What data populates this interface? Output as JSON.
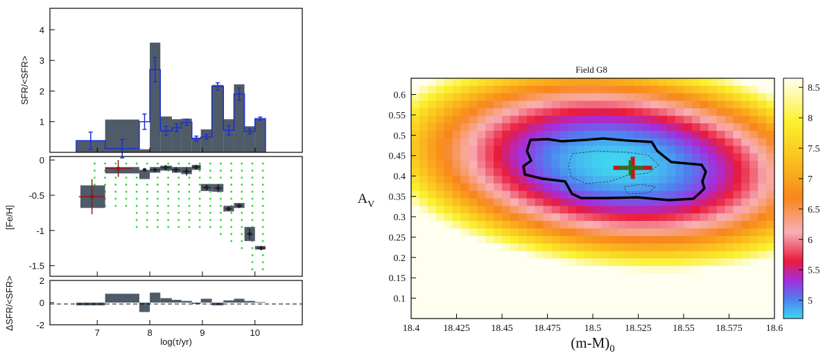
{
  "chart_data": [
    {
      "type": "bar",
      "panel": "SFR history",
      "ylabel": "SFR/<SFR>",
      "ylim": [
        0,
        4.7
      ],
      "yticks": [
        1,
        2,
        3,
        4
      ],
      "xlim": [
        6.1,
        10.9
      ],
      "bins": [
        {
          "x0": 6.6,
          "x1": 7.15,
          "sfr": 0.38,
          "best": 0.38,
          "err": 0.28
        },
        {
          "x0": 7.15,
          "x1": 7.8,
          "sfr": 1.07,
          "best": 0.12,
          "err": 0.3
        },
        {
          "x0": 7.8,
          "x1": 8.0,
          "sfr": 0.1,
          "best": 1.0,
          "err": 0.25
        },
        {
          "x0": 8.0,
          "x1": 8.2,
          "sfr": 3.58,
          "best": 2.7,
          "err": 0.4
        },
        {
          "x0": 8.2,
          "x1": 8.42,
          "sfr": 1.17,
          "best": 0.7,
          "err": 0.15
        },
        {
          "x0": 8.42,
          "x1": 8.6,
          "sfr": 1.08,
          "best": 0.8,
          "err": 0.12
        },
        {
          "x0": 8.6,
          "x1": 8.8,
          "sfr": 1.1,
          "best": 0.98,
          "err": 0.1
        },
        {
          "x0": 8.8,
          "x1": 8.97,
          "sfr": 0.48,
          "best": 0.45,
          "err": 0.08
        },
        {
          "x0": 8.97,
          "x1": 9.18,
          "sfr": 0.75,
          "best": 0.5,
          "err": 0.08
        },
        {
          "x0": 9.18,
          "x1": 9.4,
          "sfr": 2.2,
          "best": 2.15,
          "err": 0.12
        },
        {
          "x0": 9.4,
          "x1": 9.6,
          "sfr": 1.08,
          "best": 0.72,
          "err": 0.15
        },
        {
          "x0": 9.6,
          "x1": 9.8,
          "sfr": 2.22,
          "best": 1.9,
          "err": 0.2
        },
        {
          "x0": 9.8,
          "x1": 10.0,
          "sfr": 0.85,
          "best": 0.68,
          "err": 0.08
        },
        {
          "x0": 10.0,
          "x1": 10.2,
          "sfr": 1.1,
          "best": 1.1,
          "err": 0.05
        }
      ]
    },
    {
      "type": "scatter",
      "panel": "metallicity",
      "ylabel": "[Fe/H]",
      "ylim": [
        -1.65,
        0.05
      ],
      "yticks": [
        0,
        -0.5,
        -1,
        -1.5
      ],
      "ytick_labels": [
        "0",
        "-0.5",
        "-1",
        "-1.5"
      ],
      "boxes": [
        {
          "x0": 6.68,
          "x1": 7.15,
          "y0": -0.68,
          "y1": -0.36
        },
        {
          "x0": 7.15,
          "x1": 7.8,
          "y0": -0.19,
          "y1": -0.1
        },
        {
          "x0": 7.8,
          "x1": 8.0,
          "y0": -0.27,
          "y1": -0.14
        },
        {
          "x0": 8.0,
          "x1": 8.2,
          "y0": -0.18,
          "y1": -0.1
        },
        {
          "x0": 8.2,
          "x1": 8.42,
          "y0": -0.15,
          "y1": -0.08
        },
        {
          "x0": 8.42,
          "x1": 8.6,
          "y0": -0.18,
          "y1": -0.1
        },
        {
          "x0": 8.6,
          "x1": 8.8,
          "y0": -0.2,
          "y1": -0.1
        },
        {
          "x0": 8.8,
          "x1": 8.97,
          "y0": -0.14,
          "y1": -0.07
        },
        {
          "x0": 8.97,
          "x1": 9.18,
          "y0": -0.44,
          "y1": -0.34
        },
        {
          "x0": 9.18,
          "x1": 9.4,
          "y0": -0.45,
          "y1": -0.34
        },
        {
          "x0": 9.4,
          "x1": 9.6,
          "y0": -0.73,
          "y1": -0.65
        },
        {
          "x0": 9.6,
          "x1": 9.8,
          "y0": -0.68,
          "y1": -0.61
        },
        {
          "x0": 9.8,
          "x1": 10.0,
          "y0": -1.15,
          "y1": -0.95
        },
        {
          "x0": 10.0,
          "x1": 10.2,
          "y0": -1.27,
          "y1": -1.22
        }
      ],
      "points": [
        {
          "x": 6.9,
          "y": -0.52,
          "xerr": 0.25,
          "yerr": 0.25,
          "color": "#8b1a1a"
        },
        {
          "x": 7.4,
          "y": -0.12,
          "xerr": 0.25,
          "yerr": 0.12,
          "color": "#8b1a1a"
        },
        {
          "x": 7.9,
          "y": -0.14,
          "xerr": 0.0,
          "yerr": 0.02,
          "color": "#222222"
        },
        {
          "x": 8.1,
          "y": -0.14,
          "xerr": 0.1,
          "yerr": 0.02,
          "color": "#222222"
        },
        {
          "x": 8.3,
          "y": -0.11,
          "xerr": 0.1,
          "yerr": 0.04,
          "color": "#222222"
        },
        {
          "x": 8.5,
          "y": -0.14,
          "xerr": 0.08,
          "yerr": 0.04,
          "color": "#222222"
        },
        {
          "x": 8.7,
          "y": -0.16,
          "xerr": 0.08,
          "yerr": 0.06,
          "color": "#222222"
        },
        {
          "x": 8.88,
          "y": -0.1,
          "xerr": 0.08,
          "yerr": 0.03,
          "color": "#222222"
        },
        {
          "x": 9.08,
          "y": -0.39,
          "xerr": 0.08,
          "yerr": 0.04,
          "color": "#222222"
        },
        {
          "x": 9.3,
          "y": -0.4,
          "xerr": 0.08,
          "yerr": 0.06,
          "color": "#222222"
        },
        {
          "x": 9.5,
          "y": -0.69,
          "xerr": 0.06,
          "yerr": 0.03,
          "color": "#222222"
        },
        {
          "x": 9.7,
          "y": -0.65,
          "xerr": 0.06,
          "yerr": 0.03,
          "color": "#222222"
        },
        {
          "x": 9.9,
          "y": -1.05,
          "xerr": 0.06,
          "yerr": 0.08,
          "color": "#222222"
        },
        {
          "x": 10.12,
          "y": -1.25,
          "xerr": 0.08,
          "yerr": 0.03,
          "color": "#222222"
        }
      ],
      "grid_dots": {
        "color": "#22dd22"
      }
    },
    {
      "type": "bar",
      "panel": "residuals",
      "ylabel": "ΔSFR/<SFR>",
      "xlabel": "log(τ/yr)",
      "ylim": [
        -2,
        2
      ],
      "yticks": [
        -2,
        0,
        2
      ],
      "xticks": [
        7,
        8,
        9,
        10
      ],
      "values": [
        -0.25,
        0.8,
        -0.85,
        0.9,
        0.4,
        0.25,
        0.15,
        -0.1,
        0.35,
        -0.25,
        0.2,
        0.35,
        0.15,
        0.05
      ]
    },
    {
      "type": "heatmap",
      "title": "Field G8",
      "xlabel": "(m-M)0",
      "ylabel": "AV",
      "xlim": [
        18.4,
        18.6
      ],
      "ylim": [
        0.05,
        0.64
      ],
      "xticks": [
        "18.4",
        "18.425",
        "18.45",
        "18.475",
        "18.5",
        "18.525",
        "18.55",
        "18.575",
        "18.6"
      ],
      "yticks": [
        "0.1",
        "0.15",
        "0.2",
        "0.25",
        "0.3",
        "0.35",
        "0.4",
        "0.45",
        "0.5",
        "0.55",
        "0.6"
      ],
      "center": {
        "x": 18.522,
        "y": 0.42
      },
      "colorbar": {
        "min": 4.7,
        "max": 8.65,
        "ticks": [
          "5",
          "5.5",
          "6",
          "6.5",
          "7",
          "7.5",
          "8",
          "8.5"
        ]
      }
    }
  ]
}
